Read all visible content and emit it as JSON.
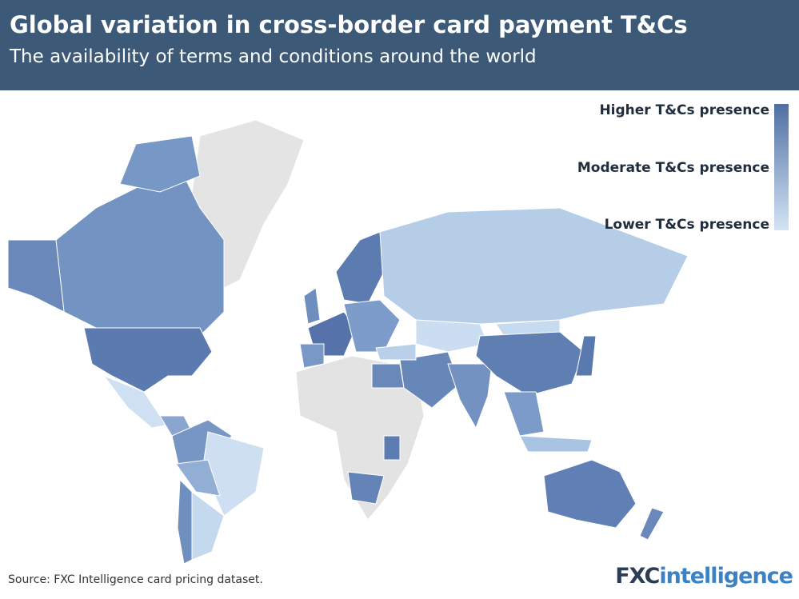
{
  "header": {
    "title": "Global variation in cross-border card payment T&Cs",
    "subtitle": "The availability of terms and conditions around the world"
  },
  "legend": {
    "labels": [
      "Higher T&Cs presence",
      "Moderate T&Cs presence",
      "Lower T&Cs presence"
    ]
  },
  "footer": {
    "source": "Source: FXC Intelligence card pricing dataset.",
    "logo_prefix": "FXC",
    "logo_suffix": "intelligence"
  }
}
